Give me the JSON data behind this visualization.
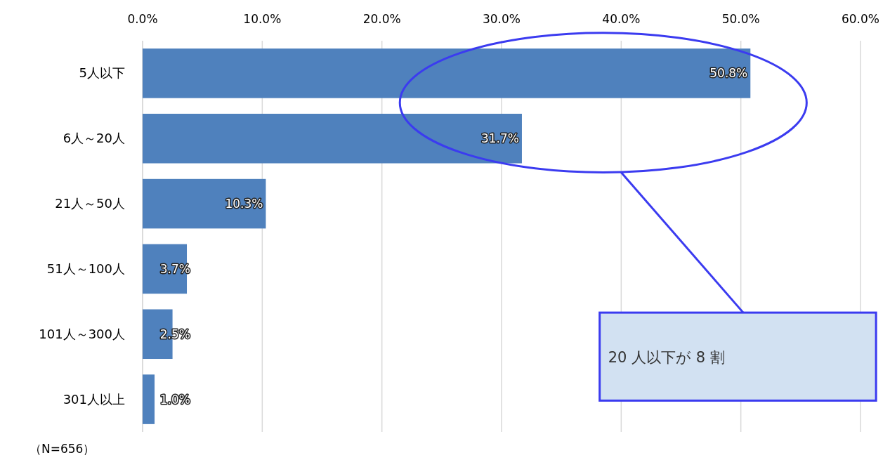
{
  "chart_data": {
    "type": "bar",
    "orientation": "horizontal",
    "categories": [
      "5人以下",
      "6人～20人",
      "21人～50人",
      "51人～100人",
      "101人～300人",
      "301人以上"
    ],
    "values": [
      50.8,
      31.7,
      10.3,
      3.7,
      2.5,
      1.0
    ],
    "value_labels": [
      "50.8%",
      "31.7%",
      "10.3%",
      "3.7%",
      "2.5%",
      "1.0%"
    ],
    "color": "#4f81bd",
    "xlim": [
      0,
      60
    ],
    "xticks": [
      {
        "value": 0,
        "label": "0.0%"
      },
      {
        "value": 10,
        "label": "10.0%"
      },
      {
        "value": 20,
        "label": "20.0%"
      },
      {
        "value": 30,
        "label": "30.0%"
      },
      {
        "value": 40,
        "label": "40.0%"
      },
      {
        "value": 50,
        "label": "50.0%"
      },
      {
        "value": 60,
        "label": "60.0%"
      }
    ],
    "grid": "x",
    "annotations": [
      "20 人以下が 8 割",
      "（N=656）"
    ]
  }
}
